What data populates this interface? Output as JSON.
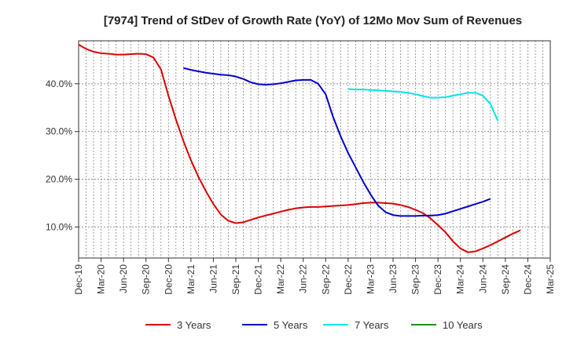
{
  "chart_data": {
    "type": "line",
    "title": "[7974]  Trend of StDev of Growth Rate (YoY) of 12Mo Mov Sum of Revenues",
    "xlabel": "",
    "ylabel": "",
    "grid": true,
    "legend_position": "bottom",
    "y_ticks": [
      {
        "value": 10,
        "label": "10.0%"
      },
      {
        "value": 20,
        "label": "20.0%"
      },
      {
        "value": 30,
        "label": "30.0%"
      },
      {
        "value": 40,
        "label": "40.0%"
      }
    ],
    "ylim": [
      3.5,
      49
    ],
    "x_ticks": [
      {
        "index": 0,
        "label": "Dec-19"
      },
      {
        "index": 3,
        "label": "Mar-20"
      },
      {
        "index": 6,
        "label": "Jun-20"
      },
      {
        "index": 9,
        "label": "Sep-20"
      },
      {
        "index": 12,
        "label": "Dec-20"
      },
      {
        "index": 15,
        "label": "Mar-21"
      },
      {
        "index": 18,
        "label": "Jun-21"
      },
      {
        "index": 21,
        "label": "Sep-21"
      },
      {
        "index": 24,
        "label": "Dec-21"
      },
      {
        "index": 27,
        "label": "Mar-22"
      },
      {
        "index": 30,
        "label": "Jun-22"
      },
      {
        "index": 33,
        "label": "Sep-22"
      },
      {
        "index": 36,
        "label": "Dec-22"
      },
      {
        "index": 39,
        "label": "Mar-23"
      },
      {
        "index": 42,
        "label": "Jun-23"
      },
      {
        "index": 45,
        "label": "Sep-23"
      },
      {
        "index": 48,
        "label": "Dec-23"
      },
      {
        "index": 51,
        "label": "Mar-24"
      },
      {
        "index": 54,
        "label": "Jun-24"
      },
      {
        "index": 57,
        "label": "Sep-24"
      },
      {
        "index": 60,
        "label": "Dec-24"
      },
      {
        "index": 63,
        "label": "Mar-25"
      }
    ],
    "xlim": [
      0,
      63
    ],
    "series": [
      {
        "name": "3 Years",
        "color": "#dd0000",
        "points": [
          [
            0,
            48.2
          ],
          [
            1,
            47.3
          ],
          [
            2,
            46.7
          ],
          [
            3,
            46.4
          ],
          [
            4,
            46.3
          ],
          [
            5,
            46.1
          ],
          [
            6,
            46.1
          ],
          [
            7,
            46.2
          ],
          [
            8,
            46.3
          ],
          [
            9,
            46.2
          ],
          [
            10,
            45.5
          ],
          [
            11,
            43.0
          ],
          [
            12,
            37.5
          ],
          [
            13,
            32.5
          ],
          [
            14,
            28.0
          ],
          [
            15,
            24.0
          ],
          [
            16,
            20.5
          ],
          [
            17,
            17.5
          ],
          [
            18,
            14.8
          ],
          [
            19,
            12.6
          ],
          [
            20,
            11.3
          ],
          [
            21,
            10.8
          ],
          [
            22,
            11.0
          ],
          [
            23,
            11.5
          ],
          [
            24,
            12.0
          ],
          [
            25,
            12.4
          ],
          [
            26,
            12.8
          ],
          [
            27,
            13.2
          ],
          [
            28,
            13.6
          ],
          [
            29,
            13.9
          ],
          [
            30,
            14.1
          ],
          [
            31,
            14.2
          ],
          [
            32,
            14.2
          ],
          [
            33,
            14.3
          ],
          [
            34,
            14.4
          ],
          [
            35,
            14.5
          ],
          [
            36,
            14.6
          ],
          [
            37,
            14.8
          ],
          [
            38,
            15.0
          ],
          [
            39,
            15.1
          ],
          [
            40,
            15.1
          ],
          [
            41,
            15.0
          ],
          [
            42,
            14.9
          ],
          [
            43,
            14.6
          ],
          [
            44,
            14.2
          ],
          [
            45,
            13.6
          ],
          [
            46,
            12.9
          ],
          [
            47,
            11.8
          ],
          [
            48,
            10.4
          ],
          [
            49,
            8.9
          ],
          [
            50,
            7.0
          ],
          [
            51,
            5.5
          ],
          [
            52,
            4.7
          ],
          [
            53,
            4.9
          ],
          [
            54,
            5.5
          ],
          [
            55,
            6.2
          ],
          [
            56,
            7.0
          ],
          [
            57,
            7.8
          ],
          [
            58,
            8.6
          ],
          [
            59,
            9.3
          ]
        ]
      },
      {
        "name": "5 Years",
        "color": "#0000cc",
        "points": [
          [
            14,
            43.3
          ],
          [
            15,
            42.9
          ],
          [
            16,
            42.6
          ],
          [
            17,
            42.3
          ],
          [
            18,
            42.1
          ],
          [
            19,
            41.9
          ],
          [
            20,
            41.8
          ],
          [
            21,
            41.5
          ],
          [
            22,
            41.0
          ],
          [
            23,
            40.3
          ],
          [
            24,
            39.9
          ],
          [
            25,
            39.8
          ],
          [
            26,
            39.9
          ],
          [
            27,
            40.1
          ],
          [
            28,
            40.4
          ],
          [
            29,
            40.7
          ],
          [
            30,
            40.8
          ],
          [
            31,
            40.8
          ],
          [
            32,
            40.0
          ],
          [
            33,
            37.8
          ],
          [
            34,
            33.0
          ],
          [
            35,
            29.0
          ],
          [
            36,
            25.5
          ],
          [
            37,
            22.5
          ],
          [
            38,
            19.5
          ],
          [
            39,
            16.8
          ],
          [
            40,
            14.5
          ],
          [
            41,
            13.1
          ],
          [
            42,
            12.5
          ],
          [
            43,
            12.3
          ],
          [
            44,
            12.3
          ],
          [
            45,
            12.3
          ],
          [
            46,
            12.4
          ],
          [
            47,
            12.4
          ],
          [
            48,
            12.5
          ],
          [
            49,
            12.8
          ],
          [
            50,
            13.3
          ],
          [
            51,
            13.8
          ],
          [
            52,
            14.3
          ],
          [
            53,
            14.8
          ],
          [
            54,
            15.3
          ],
          [
            55,
            15.9
          ]
        ]
      },
      {
        "name": "7 Years",
        "color": "#00e5e5",
        "points": [
          [
            36,
            38.9
          ],
          [
            37,
            38.8
          ],
          [
            38,
            38.8
          ],
          [
            39,
            38.7
          ],
          [
            40,
            38.6
          ],
          [
            41,
            38.5
          ],
          [
            42,
            38.4
          ],
          [
            43,
            38.3
          ],
          [
            44,
            38.1
          ],
          [
            45,
            37.8
          ],
          [
            46,
            37.4
          ],
          [
            47,
            37.1
          ],
          [
            48,
            37.1
          ],
          [
            49,
            37.2
          ],
          [
            50,
            37.5
          ],
          [
            51,
            37.8
          ],
          [
            52,
            38.1
          ],
          [
            53,
            38.1
          ],
          [
            54,
            37.5
          ],
          [
            55,
            35.8
          ],
          [
            56,
            32.2
          ]
        ]
      },
      {
        "name": "10 Years",
        "color": "#228b22",
        "points": []
      }
    ]
  }
}
